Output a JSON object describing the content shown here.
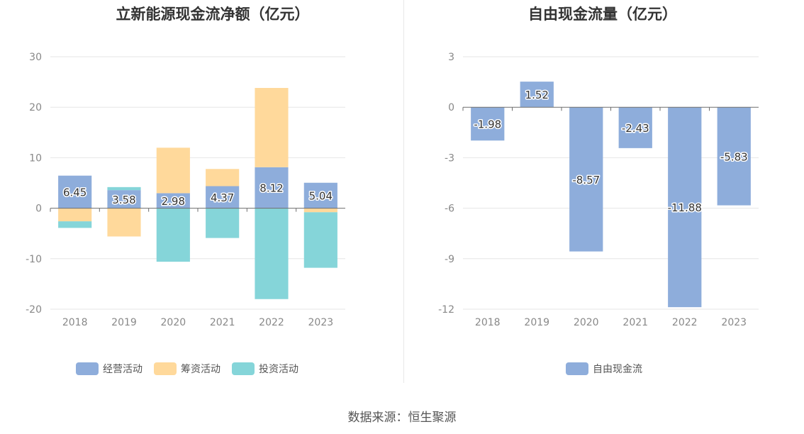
{
  "source": "数据来源：恒生聚源",
  "chart_data": [
    {
      "type": "bar",
      "stacked": true,
      "title": "立新能源现金流净额（亿元）",
      "categories": [
        "2018",
        "2019",
        "2020",
        "2021",
        "2022",
        "2023"
      ],
      "ylim": [
        -20,
        30
      ],
      "yticks": [
        30,
        20,
        10,
        0,
        -10,
        -20
      ],
      "grid": true,
      "legend_position": "bottom",
      "series": [
        {
          "name": "经营活动",
          "color": "#8eaddb",
          "values": [
            6.45,
            3.58,
            2.98,
            4.37,
            8.12,
            5.04
          ]
        },
        {
          "name": "筹资活动",
          "color": "#ffd99b",
          "values": [
            -2.6,
            -5.6,
            9.0,
            3.4,
            15.7,
            -0.8
          ]
        },
        {
          "name": "投资活动",
          "color": "#85d5d9",
          "values": [
            -1.3,
            0.6,
            -10.6,
            -5.9,
            -18.0,
            -11.0
          ]
        }
      ],
      "data_labels": [
        "6.45",
        "3.58",
        "2.98",
        "4.37",
        "8.12",
        "5.04"
      ]
    },
    {
      "type": "bar",
      "title": "自由现金流量（亿元）",
      "categories": [
        "2018",
        "2019",
        "2020",
        "2021",
        "2022",
        "2023"
      ],
      "ylim": [
        -12,
        3
      ],
      "yticks": [
        3,
        0,
        -3,
        -6,
        -9,
        -12
      ],
      "grid": true,
      "legend_position": "bottom",
      "series": [
        {
          "name": "自由现金流",
          "color": "#8eaddb",
          "values": [
            -1.98,
            1.52,
            -8.57,
            -2.43,
            -11.88,
            -5.83
          ]
        }
      ],
      "data_labels": [
        "-1.98",
        "1.52",
        "-8.57",
        "-2.43",
        "-11.88",
        "-5.83"
      ]
    }
  ]
}
